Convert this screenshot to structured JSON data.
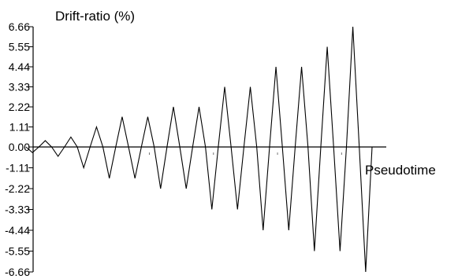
{
  "chart_data": {
    "type": "line",
    "title": "",
    "ylabel": "Drift-ratio (%)",
    "xlabel": "Pseudotime",
    "ylim": [
      -6.66,
      6.66
    ],
    "yticks": [
      "6.66",
      "5.55",
      "4.44",
      "3.33",
      "2.22",
      "1.11",
      "0.00",
      "-1.11",
      "-2.22",
      "-3.33",
      "-4.44",
      "-5.55",
      "-6.66"
    ],
    "grid": false,
    "series": [
      {
        "x": [
          0,
          0.5,
          1,
          1.5,
          2,
          2.5,
          3,
          3.5,
          4,
          4.5,
          5,
          5.5,
          6,
          6.5,
          7,
          7.5,
          8,
          8.5,
          9,
          9.5,
          10,
          10.5,
          11,
          11.5,
          12,
          12.5,
          13,
          13.5,
          14,
          14.5,
          15,
          15.5,
          16,
          16.5,
          17,
          17.5,
          18,
          18.5,
          19,
          19.5,
          20,
          20.5,
          21,
          21.5,
          22,
          22.5,
          23,
          23.5,
          24,
          24.5,
          25,
          25.5,
          26,
          26.5,
          27
        ],
        "values": [
          0,
          -0.3,
          0,
          0.35,
          0,
          -0.5,
          0,
          0.55,
          0,
          -1.11,
          0,
          1.11,
          0,
          -1.67,
          0,
          1.67,
          0,
          -1.67,
          0,
          1.67,
          0,
          -2.22,
          0,
          2.22,
          0,
          -2.22,
          0,
          2.22,
          0,
          -3.33,
          0,
          3.33,
          0,
          -3.33,
          0,
          3.33,
          0,
          -4.44,
          0,
          4.44,
          0,
          -4.44,
          0,
          4.44,
          0,
          -5.55,
          0,
          5.55,
          0,
          -5.55,
          0,
          6.66,
          0,
          -6.66,
          0
        ]
      }
    ]
  }
}
